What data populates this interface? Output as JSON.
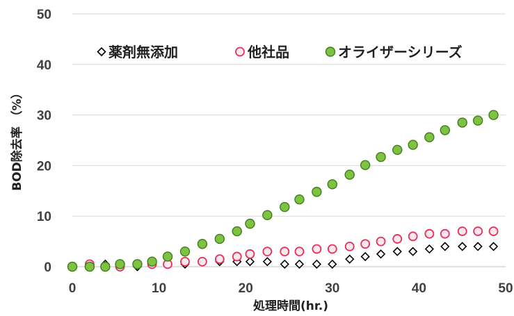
{
  "chart_data": {
    "type": "scatter",
    "xlabel": "処理時間(hr.)",
    "ylabel": "BOD除去率 （%）",
    "xlim": [
      0,
      50
    ],
    "ylim": [
      0,
      50
    ],
    "x_ticks": [
      "0",
      "10",
      "20",
      "30",
      "40",
      "50"
    ],
    "y_ticks": [
      "0",
      "10",
      "20",
      "30",
      "40",
      "50"
    ],
    "grid": "horizontal",
    "legend_position": "top",
    "series": [
      {
        "name": "薬剤無添加",
        "marker": "diamond-open",
        "color": "#000000",
        "fill": "#ffffff",
        "x": [
          0,
          2,
          3.8,
          5.5,
          7.5,
          9.2,
          11,
          13,
          15,
          17,
          19,
          20.5,
          22.5,
          24.5,
          26.2,
          28.2,
          30,
          32,
          33.8,
          35.6,
          37.5,
          39.3,
          41.2,
          43,
          45,
          46.8,
          48.6
        ],
        "y": [
          0,
          0.3,
          0.5,
          0,
          0,
          0.5,
          0.5,
          0.5,
          1,
          1,
          1,
          1,
          1,
          0.5,
          0.5,
          0.5,
          0.5,
          1.5,
          2,
          2.5,
          3,
          3,
          3.5,
          4,
          4,
          4,
          4
        ]
      },
      {
        "name": "他社品",
        "marker": "circle-open",
        "color": "#e8305a",
        "fill": "#fde8ee",
        "x": [
          0,
          2,
          3.8,
          5.5,
          7.5,
          9.2,
          11,
          13,
          15,
          17,
          19,
          20.5,
          22.5,
          24.5,
          26.2,
          28.2,
          30,
          32,
          33.8,
          35.6,
          37.5,
          39.3,
          41.2,
          43,
          45,
          46.8,
          48.6
        ],
        "y": [
          0,
          0.5,
          0,
          0,
          0.5,
          0.5,
          0.5,
          1,
          1,
          1.5,
          2,
          2.5,
          3,
          3,
          3,
          3.5,
          3.5,
          4,
          4.5,
          5,
          5.5,
          6,
          6.5,
          6.5,
          7,
          7,
          7
        ]
      },
      {
        "name": "オライザーシリーズ",
        "marker": "circle-filled",
        "color": "#3f7d1e",
        "fill": "#7fc241",
        "x": [
          0,
          2,
          3.8,
          5.5,
          7.5,
          9.2,
          11,
          13,
          15,
          17,
          19,
          20.5,
          22.5,
          24.5,
          26.2,
          28.2,
          30,
          32,
          33.8,
          35.6,
          37.5,
          39.3,
          41.2,
          43,
          45,
          46.8,
          48.6
        ],
        "y": [
          0,
          0,
          0,
          0.5,
          0.5,
          1,
          2,
          3,
          4.5,
          5.5,
          7,
          8.5,
          10.2,
          11.8,
          13.3,
          14.8,
          16.3,
          18.2,
          20.1,
          21.7,
          23.1,
          24.1,
          25.6,
          27,
          28.5,
          28.9,
          30
        ]
      }
    ]
  }
}
